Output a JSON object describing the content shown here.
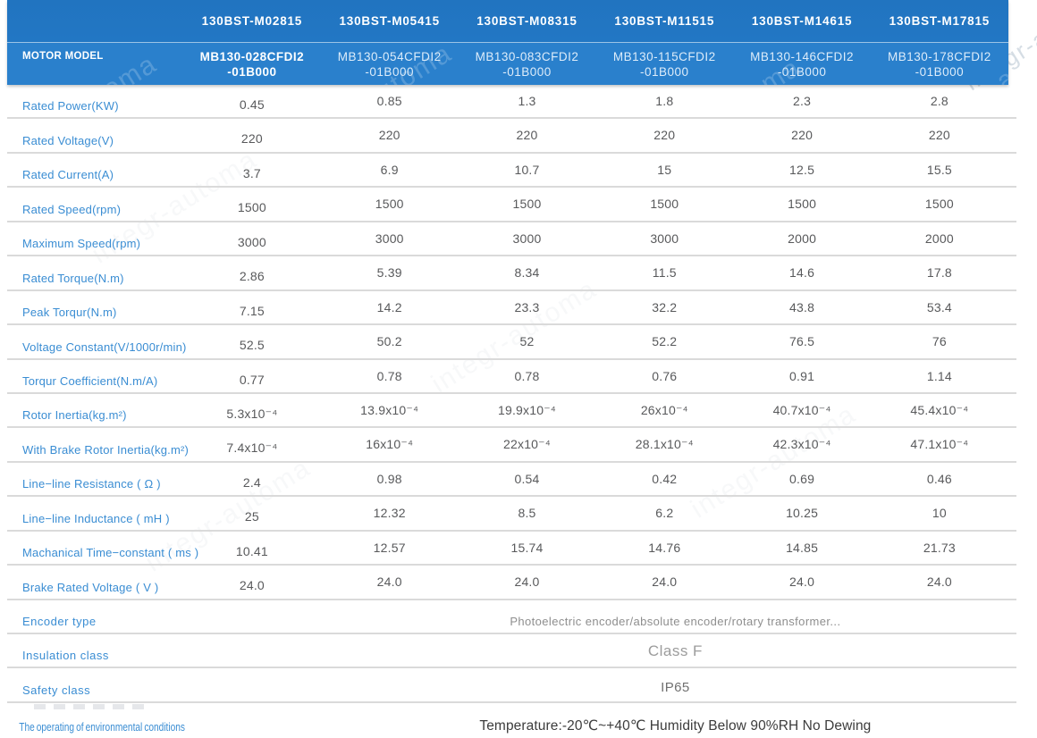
{
  "watermark": "integr-automa",
  "colors": {
    "header_blue": "#2277c4",
    "label_blue": "#3a8dd3",
    "value_gray": "#58595b",
    "separator_gray": "#dadada"
  },
  "header": {
    "row_label": "MOTOR MODEL",
    "models": [
      "130BST-M02815",
      "130BST-M05415",
      "130BST-M08315",
      "130BST-M11515",
      "130BST-M14615",
      "130BST-M17815"
    ],
    "sub_models": [
      "MB130-028CFDI2\n-01B000",
      "MB130-054CFDI2\n-01B000",
      "MB130-083CFDI2\n-01B000",
      "MB130-115CFDI2\n-01B000",
      "MB130-146CFDI2\n-01B000",
      "MB130-178CFDI2\n-01B000"
    ]
  },
  "rows": [
    {
      "label": "Rated Power(KW)",
      "values": [
        "0.45",
        "0.85",
        "1.3",
        "1.8",
        "2.3",
        "2.8"
      ]
    },
    {
      "label": "Rated Voltage(V)",
      "values": [
        "220",
        "220",
        "220",
        "220",
        "220",
        "220"
      ]
    },
    {
      "label": "Rated Current(A)",
      "values": [
        "3.7",
        "6.9",
        "10.7",
        "15",
        "12.5",
        "15.5"
      ]
    },
    {
      "label": "Rated Speed(rpm)",
      "values": [
        "1500",
        "1500",
        "1500",
        "1500",
        "1500",
        "1500"
      ]
    },
    {
      "label": "Maximum Speed(rpm)",
      "values": [
        "3000",
        "3000",
        "3000",
        "3000",
        "2000",
        "2000"
      ]
    },
    {
      "label": "Rated Torque(N.m)",
      "values": [
        "2.86",
        "5.39",
        "8.34",
        "11.5",
        "14.6",
        "17.8"
      ]
    },
    {
      "label": "Peak Torqur(N.m)",
      "values": [
        "7.15",
        "14.2",
        "23.3",
        "32.2",
        "43.8",
        "53.4"
      ]
    },
    {
      "label": "Voltage Constant(V/1000r/min)",
      "values": [
        "52.5",
        "50.2",
        "52",
        "52.2",
        "76.5",
        "76"
      ]
    },
    {
      "label": "Torqur Coefficient(N.m/A)",
      "values": [
        "0.77",
        "0.78",
        "0.78",
        "0.76",
        "0.91",
        "1.14"
      ]
    },
    {
      "label": "Rotor Inertia(kg.m²)",
      "values": [
        "5.3x10⁻⁴",
        "13.9x10⁻⁴",
        "19.9x10⁻⁴",
        "26x10⁻⁴",
        "40.7x10⁻⁴",
        "45.4x10⁻⁴"
      ]
    },
    {
      "label": "With Brake Rotor Inertia(kg.m²)",
      "values": [
        "7.4x10⁻⁴",
        "16x10⁻⁴",
        "22x10⁻⁴",
        "28.1x10⁻⁴",
        "42.3x10⁻⁴",
        "47.1x10⁻⁴"
      ]
    },
    {
      "label": "Line−line Resistance ( Ω )",
      "values": [
        "2.4",
        "0.98",
        "0.54",
        "0.42",
        "0.69",
        "0.46"
      ]
    },
    {
      "label": "Line−line Inductance ( mH )",
      "values": [
        "25",
        "12.32",
        "8.5",
        "6.2",
        "10.25",
        "10"
      ]
    },
    {
      "label": "Machanical Time−constant ( ms )",
      "values": [
        "10.41",
        "12.57",
        "15.74",
        "14.76",
        "14.85",
        "21.73"
      ]
    },
    {
      "label": "Brake Rated Voltage ( V )",
      "values": [
        "24.0",
        "24.0",
        "24.0",
        "24.0",
        "24.0",
        "24.0"
      ]
    },
    {
      "label": "Encoder type",
      "merged": "Photoelectric encoder/absolute encoder/rotary transformer..."
    },
    {
      "label": "Insulation class",
      "merged": "Class F"
    },
    {
      "label": "Safety class",
      "merged": "IP65"
    },
    {
      "label": "The operating of environmental conditions",
      "merged": "Temperature:-20℃~+40℃  Humidity Below 90%RH No Dewing"
    }
  ]
}
